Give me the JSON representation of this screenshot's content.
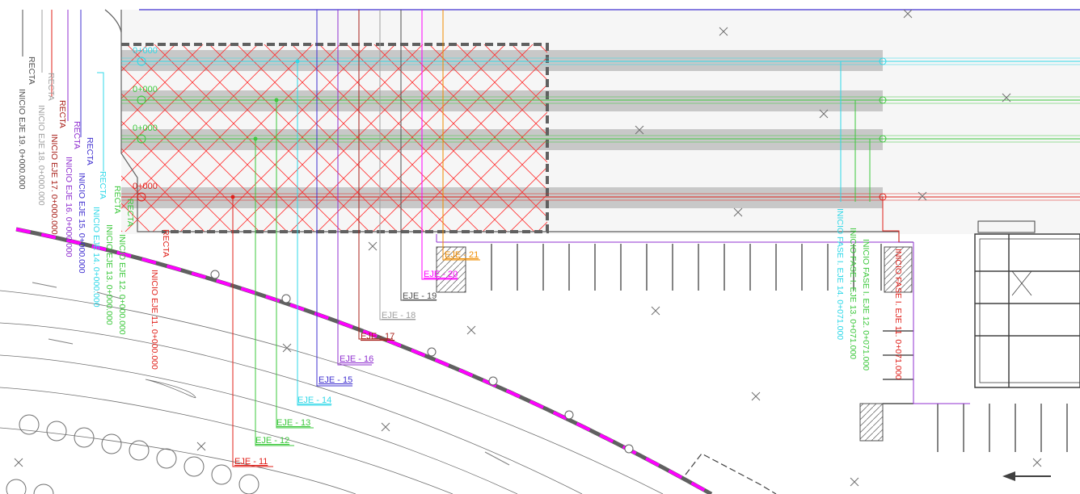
{
  "colors": {
    "red": "#e0201a",
    "darkred": "#a8201a",
    "green": "#3cc83c",
    "cyan": "#30d8e8",
    "blue": "#4030d0",
    "purple": "#9030d0",
    "magenta": "#ff00ff",
    "orange": "#f08c00",
    "grey": "#505050",
    "lightgrey": "#a0a0a0",
    "band": "#c8c8c8",
    "hatch": "#ff3030"
  },
  "chainages": {
    "top": "0+000",
    "second": "0+000",
    "third": "0+000",
    "bottom": "0+000"
  },
  "axes_labels": [
    {
      "id": "eje11",
      "text": "EJE - 11",
      "color": "red"
    },
    {
      "id": "eje12",
      "text": "EJE - 12",
      "color": "green"
    },
    {
      "id": "eje13",
      "text": "EJE - 13",
      "color": "green"
    },
    {
      "id": "eje14",
      "text": "EJE - 14",
      "color": "cyan"
    },
    {
      "id": "eje15",
      "text": "EJE - 15",
      "color": "blue"
    },
    {
      "id": "eje16",
      "text": "EJE - 16",
      "color": "purple"
    },
    {
      "id": "eje17",
      "text": "EJE - 17",
      "color": "darkred"
    },
    {
      "id": "eje18",
      "text": "EJE - 18",
      "color": "lightgrey"
    },
    {
      "id": "eje19",
      "text": "EJE - 19",
      "color": "grey"
    },
    {
      "id": "eje20",
      "text": "EJE - 20",
      "color": "magenta"
    },
    {
      "id": "eje21",
      "text": "EJE - 21",
      "color": "orange"
    }
  ],
  "vertical_labels": {
    "recta": "RECTA",
    "inicio19": "INICIO EJE 19. 0+000.000",
    "inicio18": "INICIO EJE 18. 0+000.000",
    "inicio17": "INICIO EJE 17. 0+000.000",
    "inicio16": "INICIO EJE 16. 0+000.000",
    "inicio15": "INICIO EJE 15. 0+000.000",
    "inicio14": "INICIO EJE 14. 0+000.000",
    "inicio13": "INICIO EJE 13. 0+000.000",
    "inicio12": "INICIO EJE 12. 0+000.000",
    "inicio11": "INICIO EJE 11. 0+000.000",
    "fase14": "INICIO FASE I. EJE 14. 0+071.000",
    "fase13": "INICIO FASE I. EJE 13. 0+071.000",
    "fase12": "INICIO FASE I. EJE 12. 0+071.000",
    "fase11": "INICIO FASE I. EJE 11. 0+071.000"
  }
}
